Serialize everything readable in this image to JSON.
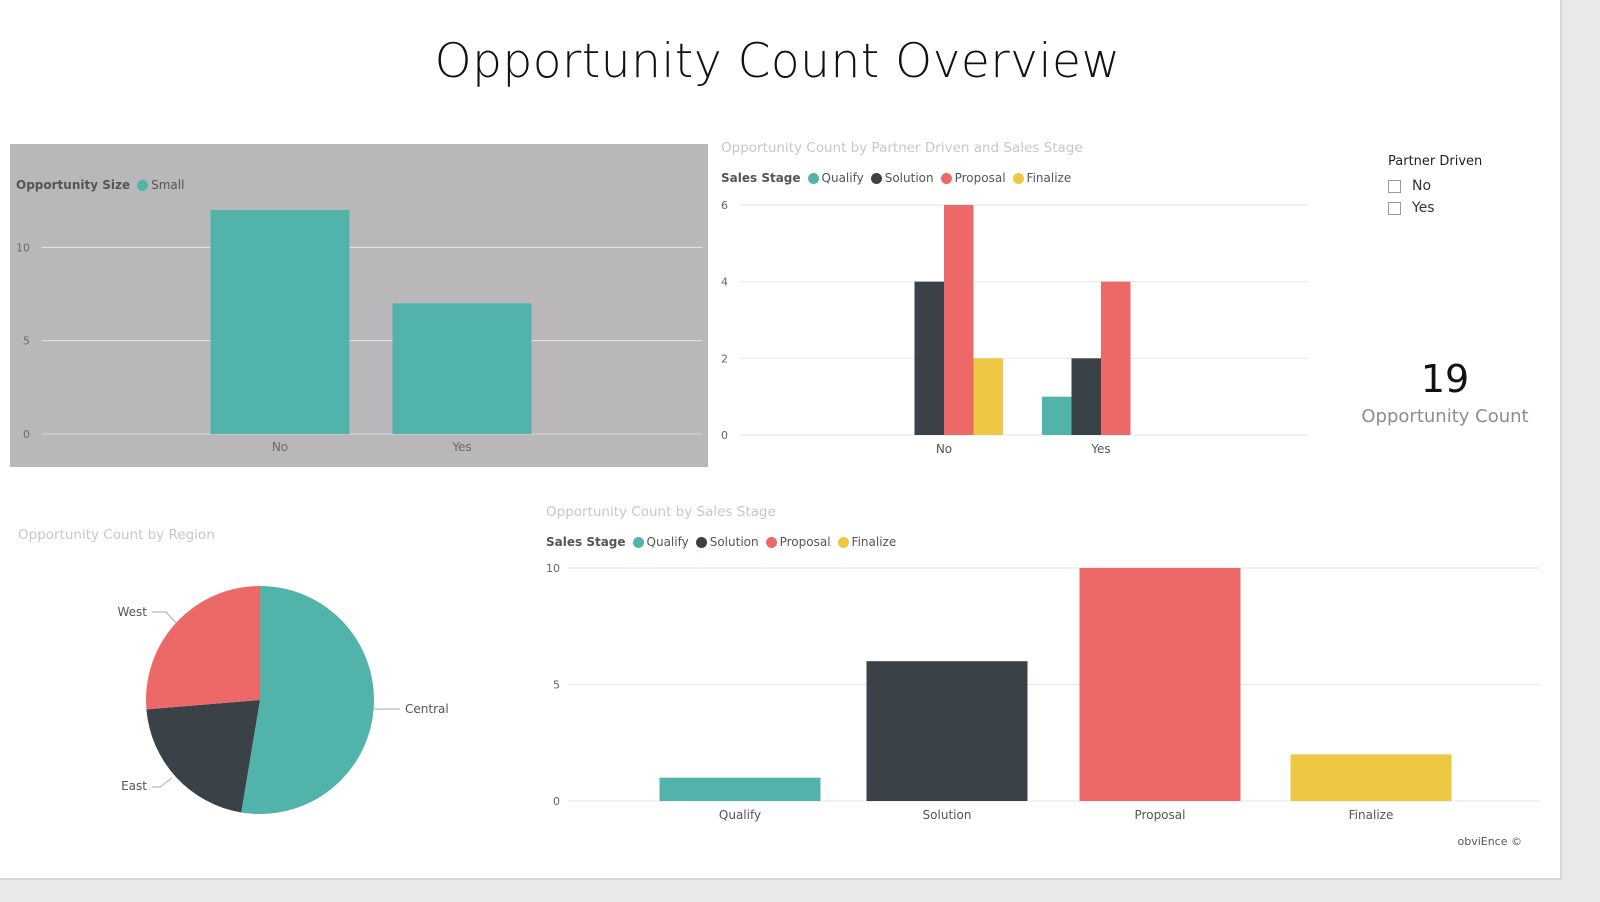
{
  "page": {
    "title": "Opportunity Count Overview",
    "footer": "obviEnce ©"
  },
  "colors": {
    "qualify": "#52b3aa",
    "solution": "#3b4247",
    "proposal": "#ec6967",
    "finalize": "#ecc843",
    "grid": "#e6e6e6",
    "card_background": "#bab7ba"
  },
  "slicer": {
    "title": "Partner Driven",
    "items": [
      {
        "label": "No",
        "checked": false
      },
      {
        "label": "Yes",
        "checked": false
      }
    ]
  },
  "kpi": {
    "value": "19",
    "label": "Opportunity Count"
  },
  "chart_data": [
    {
      "id": "size-by-partner",
      "type": "bar",
      "title": "",
      "legend_title": "Opportunity Size",
      "legend_position": "top-left",
      "categories": [
        "No",
        "Yes"
      ],
      "series": [
        {
          "name": "Small",
          "color": "#52b3aa",
          "values": [
            12,
            7
          ]
        }
      ],
      "y_ticks": [
        0,
        5,
        10
      ],
      "ylim": [
        0,
        12
      ],
      "grid": true
    },
    {
      "id": "partner-by-stage",
      "type": "bar",
      "title": "Opportunity Count by Partner Driven and Sales Stage",
      "legend_title": "Sales Stage",
      "legend_position": "top-left",
      "categories": [
        "No",
        "Yes"
      ],
      "series": [
        {
          "name": "Qualify",
          "color": "#52b3aa",
          "values": [
            0,
            1
          ]
        },
        {
          "name": "Solution",
          "color": "#3b4247",
          "values": [
            4,
            2
          ]
        },
        {
          "name": "Proposal",
          "color": "#ec6967",
          "values": [
            6,
            4
          ]
        },
        {
          "name": "Finalize",
          "color": "#ecc843",
          "values": [
            2,
            0
          ]
        }
      ],
      "y_ticks": [
        0,
        2,
        4,
        6
      ],
      "ylim": [
        0,
        6
      ],
      "grid": true
    },
    {
      "id": "region-pie",
      "type": "pie",
      "title": "Opportunity Count by Region",
      "slices": [
        {
          "label": "Central",
          "value": 10,
          "color": "#52b3aa"
        },
        {
          "label": "East",
          "value": 4,
          "color": "#3b4247"
        },
        {
          "label": "West",
          "value": 5,
          "color": "#ec6967"
        }
      ]
    },
    {
      "id": "by-stage",
      "type": "bar",
      "title": "Opportunity Count by Sales Stage",
      "legend_title": "Sales Stage",
      "legend_position": "top-left",
      "categories": [
        "Qualify",
        "Solution",
        "Proposal",
        "Finalize"
      ],
      "series": [
        {
          "name": "Qualify",
          "color": "#52b3aa"
        },
        {
          "name": "Solution",
          "color": "#3b4247"
        },
        {
          "name": "Proposal",
          "color": "#ec6967"
        },
        {
          "name": "Finalize",
          "color": "#ecc843"
        }
      ],
      "values": [
        1,
        6,
        10,
        2
      ],
      "bar_colors": [
        "#52b3aa",
        "#3b4247",
        "#ec6967",
        "#ecc843"
      ],
      "y_ticks": [
        0,
        5,
        10
      ],
      "ylim": [
        0,
        10
      ],
      "grid": true
    }
  ]
}
